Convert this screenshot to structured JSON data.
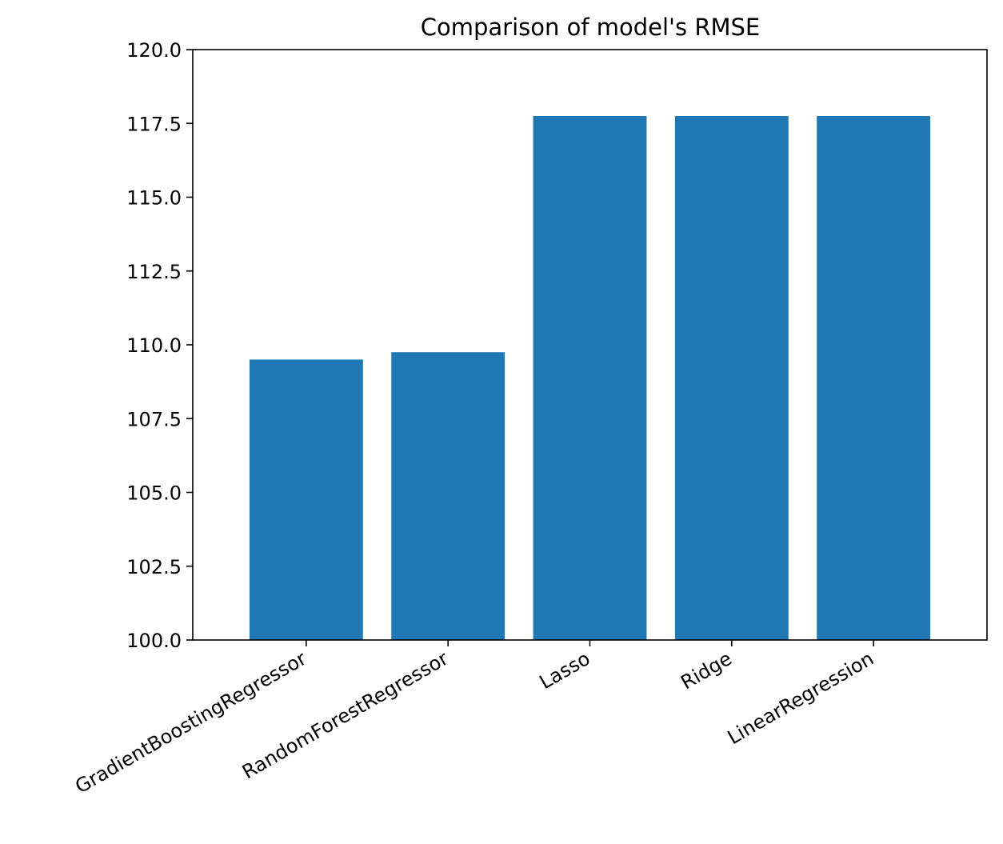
{
  "chart_data": {
    "type": "bar",
    "title": "Comparison of model's RMSE",
    "xlabel": "",
    "ylabel": "",
    "categories": [
      "GradientBoostingRegressor",
      "RandomForestRegressor",
      "Lasso",
      "Ridge",
      "LinearRegression"
    ],
    "values": [
      109.5,
      109.75,
      117.75,
      117.75,
      117.75
    ],
    "ylim": [
      100.0,
      120.0
    ],
    "yticks": [
      "100.0",
      "102.5",
      "105.0",
      "107.5",
      "110.0",
      "112.5",
      "115.0",
      "117.5",
      "120.0"
    ],
    "bar_color": "#1f77b4",
    "grid": false,
    "legend": "none",
    "xtick_rotation": "30deg"
  }
}
